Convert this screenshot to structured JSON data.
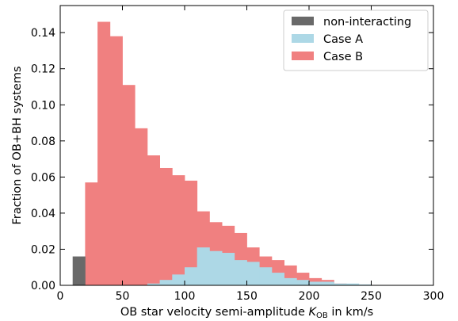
{
  "chart_data": {
    "type": "bar",
    "subtype": "overlapping-histogram",
    "bin_width": 10,
    "xlabel_prefix": "OB star velocity semi-amplitude ",
    "xlabel_symbol": "K",
    "xlabel_subscript": "OB",
    "xlabel_suffix": " in km/s",
    "ylabel": "Fraction of OB+BH systems",
    "xlim": [
      0,
      300
    ],
    "ylim": [
      0,
      0.155
    ],
    "xticks": [
      0,
      50,
      100,
      150,
      200,
      250,
      300
    ],
    "yticks": [
      0.0,
      0.02,
      0.04,
      0.06,
      0.08,
      0.1,
      0.12,
      0.14
    ],
    "ytick_labels": [
      "0.00",
      "0.02",
      "0.04",
      "0.06",
      "0.08",
      "0.10",
      "0.12",
      "0.14"
    ],
    "grid": false,
    "legend_position": "top-right",
    "series": [
      {
        "name": "Case B",
        "color": "#f08080",
        "bins": [
          {
            "x0": 20,
            "x1": 30,
            "value": 0.057
          },
          {
            "x0": 30,
            "x1": 40,
            "value": 0.146
          },
          {
            "x0": 40,
            "x1": 50,
            "value": 0.138
          },
          {
            "x0": 50,
            "x1": 60,
            "value": 0.111
          },
          {
            "x0": 60,
            "x1": 70,
            "value": 0.087
          },
          {
            "x0": 70,
            "x1": 80,
            "value": 0.072
          },
          {
            "x0": 80,
            "x1": 90,
            "value": 0.065
          },
          {
            "x0": 90,
            "x1": 100,
            "value": 0.061
          },
          {
            "x0": 100,
            "x1": 110,
            "value": 0.058
          },
          {
            "x0": 110,
            "x1": 120,
            "value": 0.041
          },
          {
            "x0": 120,
            "x1": 130,
            "value": 0.035
          },
          {
            "x0": 130,
            "x1": 140,
            "value": 0.033
          },
          {
            "x0": 140,
            "x1": 150,
            "value": 0.029
          },
          {
            "x0": 150,
            "x1": 160,
            "value": 0.021
          },
          {
            "x0": 160,
            "x1": 170,
            "value": 0.016
          },
          {
            "x0": 170,
            "x1": 180,
            "value": 0.014
          },
          {
            "x0": 180,
            "x1": 190,
            "value": 0.011
          },
          {
            "x0": 190,
            "x1": 200,
            "value": 0.007
          },
          {
            "x0": 200,
            "x1": 210,
            "value": 0.004
          },
          {
            "x0": 210,
            "x1": 220,
            "value": 0.003
          },
          {
            "x0": 220,
            "x1": 230,
            "value": 0.001
          },
          {
            "x0": 230,
            "x1": 240,
            "value": 0.0005
          }
        ]
      },
      {
        "name": "Case A",
        "color": "#add8e6",
        "bins": [
          {
            "x0": 70,
            "x1": 80,
            "value": 0.001
          },
          {
            "x0": 80,
            "x1": 90,
            "value": 0.003
          },
          {
            "x0": 90,
            "x1": 100,
            "value": 0.006
          },
          {
            "x0": 100,
            "x1": 110,
            "value": 0.01
          },
          {
            "x0": 110,
            "x1": 120,
            "value": 0.021
          },
          {
            "x0": 120,
            "x1": 130,
            "value": 0.019
          },
          {
            "x0": 130,
            "x1": 140,
            "value": 0.018
          },
          {
            "x0": 140,
            "x1": 150,
            "value": 0.014
          },
          {
            "x0": 150,
            "x1": 160,
            "value": 0.013
          },
          {
            "x0": 160,
            "x1": 170,
            "value": 0.01
          },
          {
            "x0": 170,
            "x1": 180,
            "value": 0.007
          },
          {
            "x0": 180,
            "x1": 190,
            "value": 0.004
          },
          {
            "x0": 190,
            "x1": 200,
            "value": 0.003
          },
          {
            "x0": 200,
            "x1": 210,
            "value": 0.002
          },
          {
            "x0": 210,
            "x1": 220,
            "value": 0.002
          },
          {
            "x0": 220,
            "x1": 230,
            "value": 0.001
          },
          {
            "x0": 230,
            "x1": 240,
            "value": 0.001
          },
          {
            "x0": 240,
            "x1": 250,
            "value": 0.0005
          }
        ]
      },
      {
        "name": "non-interacting",
        "color": "#696969",
        "bins": [
          {
            "x0": 10,
            "x1": 20,
            "value": 0.016
          }
        ]
      }
    ],
    "legend": [
      {
        "name": "non-interacting",
        "color": "#696969"
      },
      {
        "name": "Case A",
        "color": "#add8e6"
      },
      {
        "name": "Case B",
        "color": "#f08080"
      }
    ]
  }
}
